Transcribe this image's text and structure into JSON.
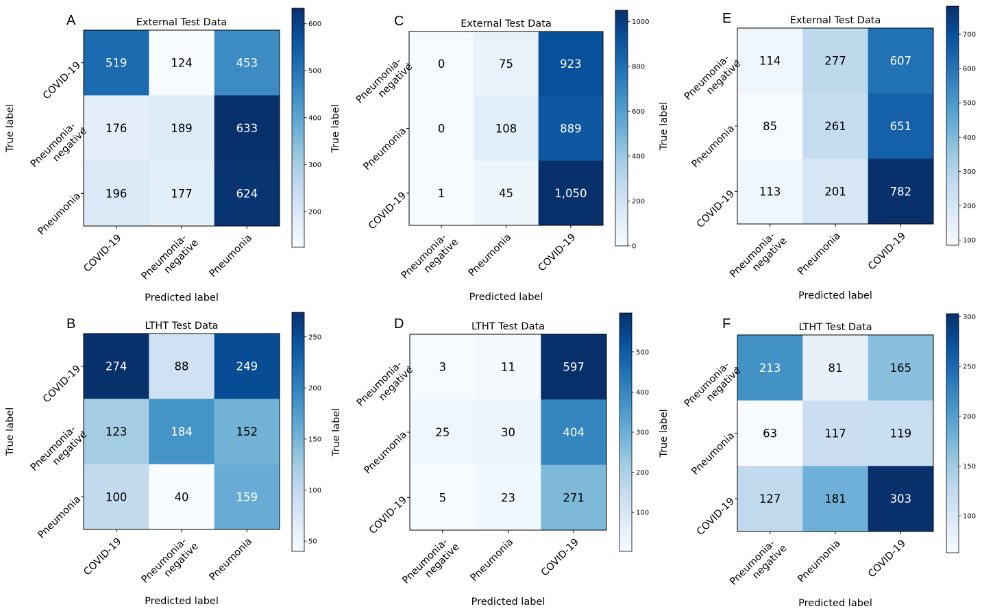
{
  "chart_data": [
    {
      "panel": "A",
      "type": "heatmap",
      "title": "External Test Data",
      "xlabel": "Predicted label",
      "ylabel": "True label",
      "x_categories": [
        "COVID-19",
        "Pneumonia-negative",
        "Pneumonia"
      ],
      "y_categories": [
        "COVID-19",
        "Pneumonia-negative",
        "Pneumonia"
      ],
      "values": [
        [
          519,
          124,
          453
        ],
        [
          176,
          189,
          633
        ],
        [
          196,
          177,
          624
        ]
      ],
      "value_labels": [
        [
          "519",
          "124",
          "453"
        ],
        [
          "176",
          "189",
          "633"
        ],
        [
          "196",
          "177",
          "624"
        ]
      ],
      "colorbar": {
        "range": [
          124,
          633
        ],
        "ticks": [
          200,
          300,
          400,
          500,
          600
        ]
      }
    },
    {
      "panel": "C",
      "type": "heatmap",
      "title": "External Test Data",
      "xlabel": "Predicted label",
      "ylabel": "True label",
      "x_categories": [
        "Pneumonia-negative",
        "Pneumonia",
        "COVID-19"
      ],
      "y_categories": [
        "Pneumonia-negative",
        "Pneumonia",
        "COVID-19"
      ],
      "values": [
        [
          0,
          75,
          923
        ],
        [
          0,
          108,
          889
        ],
        [
          1,
          45,
          1050
        ]
      ],
      "value_labels": [
        [
          "0",
          "75",
          "923"
        ],
        [
          "0",
          "108",
          "889"
        ],
        [
          "1",
          "45",
          "1,050"
        ]
      ],
      "colorbar": {
        "range": [
          0,
          1050
        ],
        "ticks": [
          0,
          200,
          400,
          600,
          800,
          1000
        ]
      }
    },
    {
      "panel": "E",
      "type": "heatmap",
      "title": "External Test Data",
      "xlabel": "Predicted label",
      "ylabel": "True label",
      "x_categories": [
        "Pneumonia-negative",
        "Pneumonia",
        "COVID-19"
      ],
      "y_categories": [
        "Pneumonia-negative",
        "Pneumonia",
        "COVID-19"
      ],
      "values": [
        [
          114,
          277,
          607
        ],
        [
          85,
          261,
          651
        ],
        [
          113,
          201,
          782
        ]
      ],
      "value_labels": [
        [
          "114",
          "277",
          "607"
        ],
        [
          "85",
          "261",
          "651"
        ],
        [
          "113",
          "201",
          "782"
        ]
      ],
      "colorbar": {
        "range": [
          85,
          782
        ],
        "ticks": [
          100,
          200,
          300,
          400,
          500,
          600,
          700
        ]
      }
    },
    {
      "panel": "B",
      "type": "heatmap",
      "title": "LTHT Test Data",
      "xlabel": "Predicted label",
      "ylabel": "True label",
      "x_categories": [
        "COVID-19",
        "Pneumonia-negative",
        "Pneumonia"
      ],
      "y_categories": [
        "COVID-19",
        "Pneumonia-negative",
        "Pneumonia"
      ],
      "values": [
        [
          274,
          88,
          249
        ],
        [
          123,
          184,
          152
        ],
        [
          100,
          40,
          159
        ]
      ],
      "value_labels": [
        [
          "274",
          "88",
          "249"
        ],
        [
          "123",
          "184",
          "152"
        ],
        [
          "100",
          "40",
          "159"
        ]
      ],
      "colorbar": {
        "range": [
          40,
          274
        ],
        "ticks": [
          50,
          100,
          150,
          200,
          250
        ]
      }
    },
    {
      "panel": "D",
      "type": "heatmap",
      "title": "LTHT Test Data",
      "xlabel": "Predicted label",
      "ylabel": "True label",
      "x_categories": [
        "Pneumonia-negative",
        "Pneumonia",
        "COVID-19"
      ],
      "y_categories": [
        "Pneumonia-negative",
        "Pneumonia",
        "COVID-19"
      ],
      "values": [
        [
          3,
          11,
          597
        ],
        [
          25,
          30,
          404
        ],
        [
          5,
          23,
          271
        ]
      ],
      "value_labels": [
        [
          "3",
          "11",
          "597"
        ],
        [
          "25",
          "30",
          "404"
        ],
        [
          "5",
          "23",
          "271"
        ]
      ],
      "colorbar": {
        "range": [
          3,
          597
        ],
        "ticks": [
          100,
          200,
          300,
          400,
          500
        ]
      }
    },
    {
      "panel": "F",
      "type": "heatmap",
      "title": "LTHT Test Data",
      "xlabel": "Predicted label",
      "ylabel": "True label",
      "x_categories": [
        "Pneumonia-negative",
        "Pneumonia",
        "COVID-19"
      ],
      "y_categories": [
        "Pneumonia-negative",
        "Pneumonia",
        "COVID-19"
      ],
      "values": [
        [
          213,
          81,
          165
        ],
        [
          63,
          117,
          119
        ],
        [
          127,
          181,
          303
        ]
      ],
      "value_labels": [
        [
          "213",
          "81",
          "165"
        ],
        [
          "63",
          "117",
          "119"
        ],
        [
          "127",
          "181",
          "303"
        ]
      ],
      "colorbar": {
        "range": [
          63,
          303
        ],
        "ticks": [
          100,
          150,
          200,
          250,
          300
        ]
      }
    }
  ],
  "colormap": [
    "#f7fbff",
    "#deebf7",
    "#c6dbef",
    "#9ecae1",
    "#6baed6",
    "#4292c6",
    "#2171b5",
    "#08519c",
    "#08306b"
  ]
}
